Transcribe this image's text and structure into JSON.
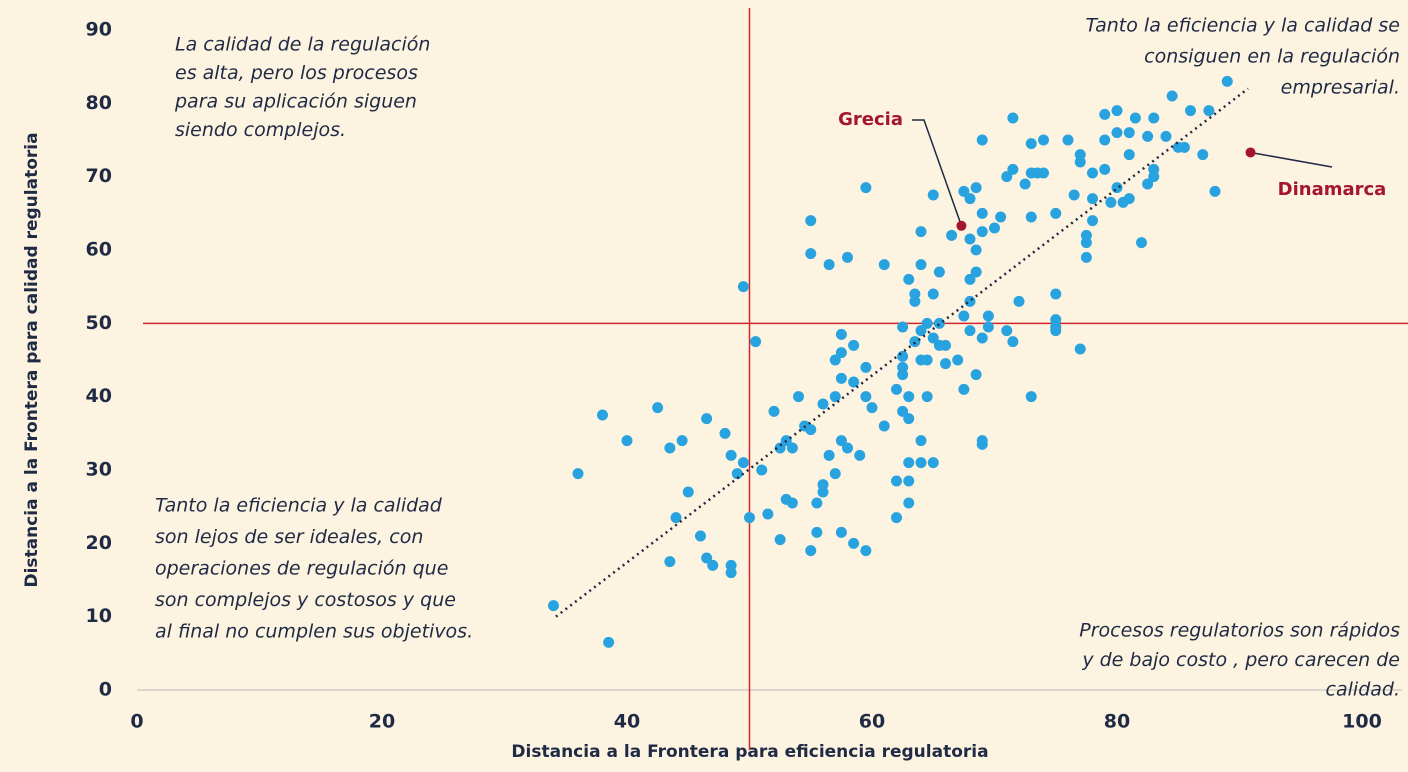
{
  "chart_data": {
    "type": "scatter",
    "xlabel": "Distancia a la Frontera para eficiencia regulatoria",
    "ylabel": "Distancia a la Frontera para calidad regulatoria",
    "xlim": [
      0,
      100
    ],
    "ylim": [
      0,
      90
    ],
    "xticks": [
      0,
      20,
      40,
      60,
      80,
      100
    ],
    "yticks": [
      0,
      10,
      20,
      30,
      40,
      50,
      60,
      70,
      80,
      90
    ],
    "series": [
      {
        "color": "#29a3e0",
        "x": [
          34,
          36,
          38,
          38.5,
          40,
          42.5,
          43.5,
          43.5,
          44,
          44.5,
          45,
          46,
          46.5,
          46.5,
          47,
          48,
          48.5,
          48.5,
          48.5,
          49,
          49.5,
          49.5,
          50,
          50.5,
          51,
          51.5,
          52,
          52.5,
          52.5,
          53,
          53,
          53.5,
          53.5,
          54,
          54.5,
          55,
          55,
          55,
          55,
          55.5,
          55.5,
          56,
          56,
          56,
          56.5,
          56.5,
          57,
          57,
          57,
          57.5,
          57.5,
          57.5,
          57.5,
          57.5,
          58,
          58,
          58.5,
          58.5,
          58.5,
          59,
          59.5,
          59.5,
          59.5,
          59.5,
          60,
          61,
          61,
          62,
          62,
          62,
          62.5,
          62.5,
          62.5,
          62.5,
          62.5,
          63,
          63,
          63,
          63,
          63,
          63,
          63.5,
          63.5,
          63.5,
          64,
          64,
          64,
          64,
          64,
          64,
          64.5,
          64.5,
          64.5,
          65,
          65,
          65,
          65,
          65.5,
          65.5,
          65.5,
          66,
          66,
          66.5,
          67,
          67.5,
          67.5,
          67.5,
          68,
          68,
          68,
          68,
          68,
          68.5,
          68.5,
          68.5,
          68.5,
          69,
          69,
          69,
          69,
          69,
          69,
          69.5,
          69.5,
          70,
          70.5,
          71,
          71,
          71.5,
          71.5,
          71.5,
          72,
          72.5,
          73,
          73,
          73,
          73,
          73.5,
          74,
          74,
          75,
          75,
          75,
          75,
          75,
          76,
          76.5,
          77,
          77,
          77,
          77.5,
          77.5,
          77.5,
          78,
          78,
          78,
          79,
          79,
          79,
          79.5,
          80,
          80,
          80,
          80.5,
          81,
          81,
          81,
          81.5,
          82,
          82.5,
          82.5,
          83,
          83,
          83,
          84,
          84.5,
          85,
          85.5,
          86,
          87,
          87.5,
          88,
          89
        ],
        "values": [
          11.5,
          29.5,
          37.5,
          6.5,
          34,
          38.5,
          17.5,
          33,
          23.5,
          34,
          27,
          21,
          18,
          37,
          17,
          35,
          16,
          17,
          32,
          29.5,
          55,
          31,
          23.5,
          47.5,
          30,
          24,
          38,
          33,
          20.5,
          26,
          34,
          25.5,
          33,
          40,
          36,
          64,
          59.5,
          19,
          35.5,
          21.5,
          25.5,
          27,
          28,
          39,
          58,
          32,
          40,
          45,
          29.5,
          46,
          42.5,
          48.5,
          34,
          21.5,
          59,
          33,
          47,
          42,
          20,
          32,
          68.5,
          44,
          40,
          19,
          38.5,
          58,
          36,
          23.5,
          28.5,
          41,
          43,
          44,
          49.5,
          45.5,
          38,
          56,
          31,
          25.5,
          28.5,
          37,
          40,
          54,
          53,
          47.5,
          58,
          62.5,
          45,
          49,
          34,
          31,
          40,
          45,
          50,
          54,
          48,
          31,
          67.5,
          47,
          57,
          50,
          44.5,
          47,
          62,
          45,
          51,
          41,
          68,
          56,
          53,
          49,
          67,
          61.5,
          68.5,
          60,
          57,
          43,
          33.5,
          34,
          48,
          65,
          62.5,
          75,
          49.5,
          51,
          63,
          64.5,
          70,
          49,
          71,
          78,
          47.5,
          53,
          69,
          40,
          64.5,
          70.5,
          74.5,
          70.5,
          75,
          70.5,
          54,
          50.5,
          49.5,
          49,
          65,
          75,
          67.5,
          73,
          72,
          46.5,
          61,
          62,
          59,
          64,
          70.5,
          67,
          75,
          78.5,
          71,
          66.5,
          79,
          68.5,
          76,
          66.5,
          76,
          73,
          67,
          78,
          61,
          69,
          75.5,
          70,
          71,
          78,
          75.5,
          81,
          74,
          74,
          79,
          73,
          79,
          68,
          83
        ]
      }
    ],
    "reference_lines": {
      "x": 50,
      "y": 50,
      "color": "#d0272b"
    },
    "trendline": {
      "x": [
        34.2,
        90.7
      ],
      "values": [
        10,
        82
      ],
      "color": "#1f2a44"
    },
    "highlights": [
      {
        "label": "Grecia",
        "x": 67.3,
        "y": 63.3,
        "color": "#a3162c"
      },
      {
        "label": "Dinamarca",
        "x": 90.9,
        "y": 73.3,
        "color": "#a3162c"
      }
    ],
    "annotations": [
      {
        "lines": [
          "La calidad de la regulación",
          "es alta, pero los procesos",
          "para su aplicación siguen",
          "siendo complejos."
        ]
      },
      {
        "lines": [
          "Tanto la eficiencia y la calidad se",
          "consiguen en la regulación",
          "empresarial."
        ]
      },
      {
        "lines": [
          "Tanto la eficiencia y la calidad",
          "son lejos de ser ideales, con",
          "operaciones de regulación que",
          "son complejos y costosos y que",
          "al final no cumplen sus objetivos."
        ]
      },
      {
        "lines": [
          "Procesos regulatorios son rápidos",
          "y de bajo costo , pero carecen de",
          "calidad."
        ]
      }
    ]
  }
}
